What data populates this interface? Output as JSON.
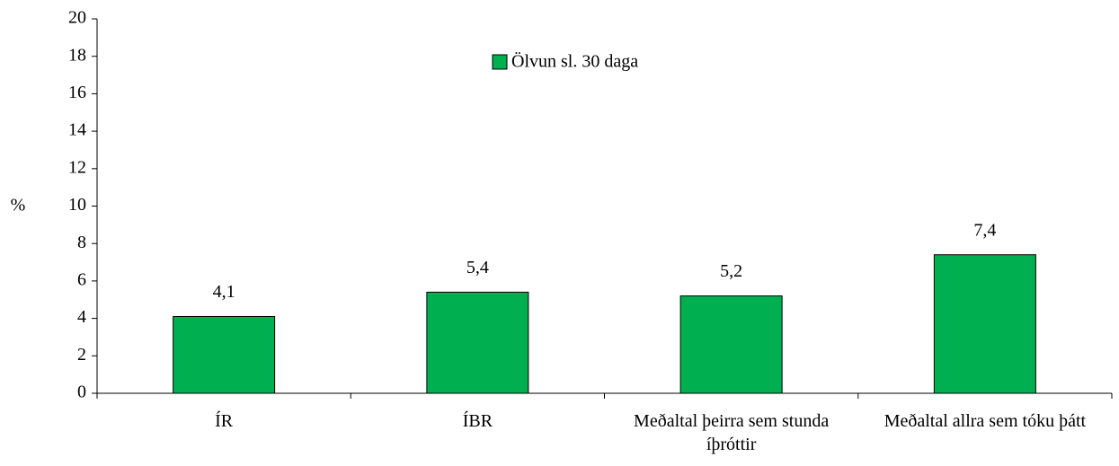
{
  "chart_data": {
    "type": "bar",
    "ylabel": "%",
    "categories": [
      "ÍR",
      "ÍBR",
      "Meðaltal þeirra sem stunda íþróttir",
      "Meðaltal allra sem tóku þátt"
    ],
    "series": [
      {
        "name": "Ölvun sl. 30 daga",
        "color": "#00b050",
        "values": [
          4.1,
          5.4,
          5.2,
          7.4
        ],
        "value_labels": [
          "4,1",
          "5,4",
          "5,2",
          "7,4"
        ]
      }
    ],
    "ylim": [
      0,
      20
    ],
    "yticks": [
      0,
      2,
      4,
      6,
      8,
      10,
      12,
      14,
      16,
      18,
      20
    ],
    "grid": false,
    "legend": "top"
  }
}
